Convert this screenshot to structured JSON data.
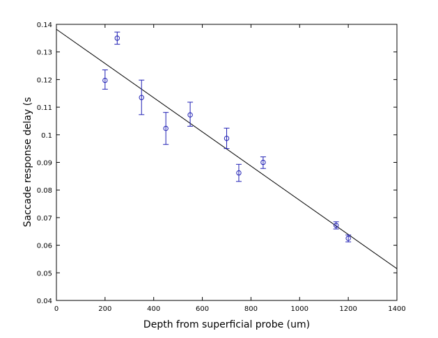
{
  "chart_data": {
    "type": "scatter",
    "xlabel": "Depth from superficial probe (um)",
    "ylabel": "Saccade response delay (s",
    "xlim": [
      0,
      1400
    ],
    "ylim": [
      0.04,
      0.14
    ],
    "xticks": [
      0,
      200,
      400,
      600,
      800,
      1000,
      1200,
      1400
    ],
    "yticks": [
      0.04,
      0.05,
      0.06,
      0.07,
      0.08,
      0.09,
      0.1,
      0.11,
      0.12,
      0.13,
      0.14
    ],
    "xtick_labels": [
      "0",
      "200",
      "400",
      "600",
      "800",
      "1000",
      "1200",
      "1400"
    ],
    "ytick_labels": [
      "0.04",
      "0.05",
      "0.06",
      "0.07",
      "0.08",
      "0.09",
      "0.1",
      "0.11",
      "0.12",
      "0.13",
      "0.14"
    ],
    "grid": false,
    "series": [
      {
        "kind": "errorbar",
        "marker": "circle",
        "color": "#1f1fb4",
        "points": [
          {
            "x": 200,
            "y": 0.1197,
            "err_low": 0.1165,
            "err_high": 0.1235
          },
          {
            "x": 250,
            "y": 0.135,
            "err_low": 0.1328,
            "err_high": 0.1372
          },
          {
            "x": 350,
            "y": 0.1135,
            "err_low": 0.1073,
            "err_high": 0.1198
          },
          {
            "x": 450,
            "y": 0.1023,
            "err_low": 0.0965,
            "err_high": 0.1081
          },
          {
            "x": 550,
            "y": 0.1072,
            "err_low": 0.1031,
            "err_high": 0.1118
          },
          {
            "x": 700,
            "y": 0.0987,
            "err_low": 0.095,
            "err_high": 0.1024
          },
          {
            "x": 750,
            "y": 0.0862,
            "err_low": 0.0831,
            "err_high": 0.0893
          },
          {
            "x": 850,
            "y": 0.09,
            "err_low": 0.0878,
            "err_high": 0.092
          },
          {
            "x": 1150,
            "y": 0.0672,
            "err_low": 0.0659,
            "err_high": 0.0685
          },
          {
            "x": 1200,
            "y": 0.0625,
            "err_low": 0.0612,
            "err_high": 0.0637
          }
        ]
      },
      {
        "kind": "line",
        "color": "#000000",
        "x": [
          0,
          1400
        ],
        "y": [
          0.1382,
          0.0515
        ]
      }
    ]
  }
}
